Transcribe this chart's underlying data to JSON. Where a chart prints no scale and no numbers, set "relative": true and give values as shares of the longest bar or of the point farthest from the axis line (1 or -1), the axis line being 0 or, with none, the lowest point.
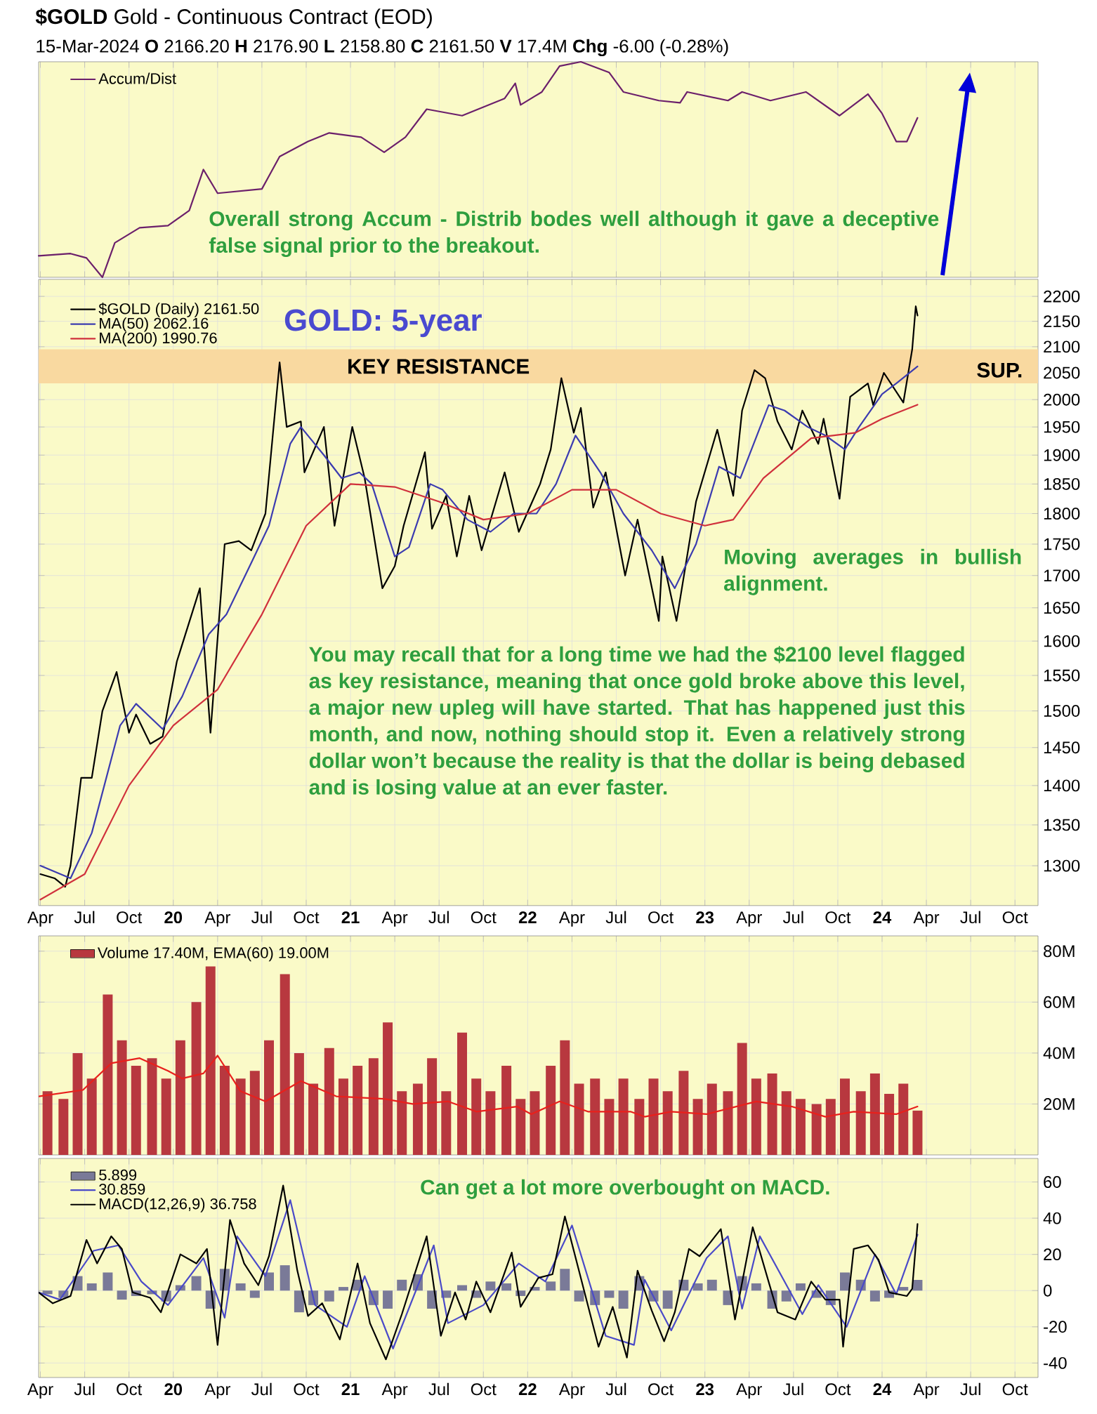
{
  "chart_data": [
    {
      "type": "line",
      "title": "**$GOLD** Gold - Continuous Contract (EOD)",
      "subtitle": "15-Mar-2024 **O** 2166.20 **H** 2176.90 **L** 2158.80 **C** 2161.50 **V** 17.4M **Chg** -6.00 (-0.28%)",
      "relative": true,
      "grid": "x",
      "legend": "top left",
      "tick_labels": false,
      "xlim": [
        2019.24,
        2024.88
      ],
      "xticks": [
        {
          "value": 2019.25,
          "label": null
        },
        {
          "value": 2019.5,
          "label": null
        },
        {
          "value": 2019.75,
          "label": null
        },
        {
          "value": 2020,
          "label": null
        },
        {
          "value": 2020.25,
          "label": null
        },
        {
          "value": 2020.5,
          "label": null
        },
        {
          "value": 2020.75,
          "label": null
        },
        {
          "value": 2021,
          "label": null
        },
        {
          "value": 2021.25,
          "label": null
        },
        {
          "value": 2021.5,
          "label": null
        },
        {
          "value": 2021.75,
          "label": null
        },
        {
          "value": 2022,
          "label": null
        },
        {
          "value": 2022.25,
          "label": null
        },
        {
          "value": 2022.5,
          "label": null
        },
        {
          "value": 2022.75,
          "label": null
        },
        {
          "value": 2023,
          "label": null
        },
        {
          "value": 2023.25,
          "label": null
        },
        {
          "value": 2023.5,
          "label": null
        },
        {
          "value": 2023.75,
          "label": null
        },
        {
          "value": 2024,
          "label": null
        },
        {
          "value": 2024.25,
          "label": null
        },
        {
          "value": 2024.5,
          "label": null
        },
        {
          "value": 2024.75,
          "label": null
        }
      ],
      "series": [
        {
          "name": "Accum/Dist",
          "color": "#6b1f6b",
          "x": [
            2019.24,
            2019.42,
            2019.51,
            2019.6,
            2019.67,
            2019.81,
            2019.97,
            2020.09,
            2020.17,
            2020.25,
            2020.5,
            2020.6,
            2020.76,
            2020.88,
            2021.06,
            2021.19,
            2021.31,
            2021.43,
            2021.63,
            2021.87,
            2021.93,
            2021.96,
            2022.08,
            2022.18,
            2022.3,
            2022.46,
            2022.54,
            2022.74,
            2022.86,
            2022.9,
            2023.13,
            2023.21,
            2023.37,
            2023.57,
            2023.76,
            2023.92,
            2024.0,
            2024.08,
            2024.14,
            2024.2
          ],
          "values": [
            0.1,
            0.11,
            0.09,
            0,
            0.16,
            0.23,
            0.24,
            0.31,
            0.5,
            0.39,
            0.41,
            0.56,
            0.63,
            0.67,
            0.65,
            0.58,
            0.65,
            0.78,
            0.75,
            0.83,
            0.9,
            0.8,
            0.86,
            0.98,
            1,
            0.95,
            0.86,
            0.82,
            0.81,
            0.86,
            0.82,
            0.86,
            0.82,
            0.86,
            0.75,
            0.85,
            0.76,
            0.63,
            0.63,
            0.74
          ]
        }
      ],
      "annotations": [
        "Overall strong Accum - Distrib bodes well although it gave a deceptive false signal prior to the breakout."
      ]
    },
    {
      "type": "line",
      "log": "y",
      "grid": true,
      "legend": "top left",
      "xlim": [
        2019.24,
        2024.88
      ],
      "xticks": [
        {
          "value": 2019.25,
          "label": "Apr"
        },
        {
          "value": 2019.5,
          "label": "Jul"
        },
        {
          "value": 2019.75,
          "label": "Oct"
        },
        {
          "value": 2020,
          "label": "20"
        },
        {
          "value": 2020.25,
          "label": "Apr"
        },
        {
          "value": 2020.5,
          "label": "Jul"
        },
        {
          "value": 2020.75,
          "label": "Oct"
        },
        {
          "value": 2021,
          "label": "21"
        },
        {
          "value": 2021.25,
          "label": "Apr"
        },
        {
          "value": 2021.5,
          "label": "Jul"
        },
        {
          "value": 2021.75,
          "label": "Oct"
        },
        {
          "value": 2022,
          "label": "22"
        },
        {
          "value": 2022.25,
          "label": "Apr"
        },
        {
          "value": 2022.5,
          "label": "Jul"
        },
        {
          "value": 2022.75,
          "label": "Oct"
        },
        {
          "value": 2023,
          "label": "23"
        },
        {
          "value": 2023.25,
          "label": "Apr"
        },
        {
          "value": 2023.5,
          "label": "Jul"
        },
        {
          "value": 2023.75,
          "label": "Oct"
        },
        {
          "value": 2024,
          "label": "24"
        },
        {
          "value": 2024.25,
          "label": "Apr"
        },
        {
          "value": 2024.5,
          "label": "Jul"
        },
        {
          "value": 2024.75,
          "label": "Oct"
        }
      ],
      "ylim": [
        1253,
        2235
      ],
      "yticks": [
        1300,
        1350,
        1400,
        1450,
        1500,
        1550,
        1600,
        1650,
        1700,
        1750,
        1800,
        1850,
        1900,
        1950,
        2000,
        2050,
        2100,
        2150,
        2200
      ],
      "series": [
        {
          "name": "$GOLD (Daily) 2161.50",
          "color": "#000000",
          "x": [
            2019.25,
            2019.33,
            2019.39,
            2019.42,
            2019.48,
            2019.54,
            2019.6,
            2019.68,
            2019.75,
            2019.79,
            2019.87,
            2019.94,
            2020.02,
            2020.15,
            2020.21,
            2020.29,
            2020.37,
            2020.44,
            2020.52,
            2020.6,
            2020.64,
            2020.72,
            2020.74,
            2020.85,
            2020.91,
            2021.01,
            2021.08,
            2021.18,
            2021.25,
            2021.3,
            2021.42,
            2021.46,
            2021.54,
            2021.6,
            2021.67,
            2021.74,
            2021.87,
            2021.95,
            2022.07,
            2022.13,
            2022.19,
            2022.26,
            2022.3,
            2022.37,
            2022.44,
            2022.55,
            2022.62,
            2022.74,
            2022.76,
            2022.84,
            2022.95,
            2023.07,
            2023.16,
            2023.21,
            2023.28,
            2023.34,
            2023.41,
            2023.49,
            2023.55,
            2023.64,
            2023.67,
            2023.76,
            2023.82,
            2023.92,
            2023.95,
            2024.01,
            2024.12,
            2024.17,
            2024.19,
            2024.2
          ],
          "values": [
            1290,
            1285,
            1275,
            1300,
            1410,
            1410,
            1500,
            1555,
            1470,
            1495,
            1455,
            1465,
            1570,
            1680,
            1470,
            1750,
            1755,
            1740,
            1800,
            2070,
            1950,
            1960,
            1870,
            1950,
            1780,
            1950,
            1860,
            1680,
            1715,
            1780,
            1905,
            1775,
            1830,
            1730,
            1830,
            1740,
            1870,
            1770,
            1850,
            1910,
            2040,
            1940,
            1985,
            1810,
            1870,
            1700,
            1790,
            1630,
            1730,
            1630,
            1820,
            1945,
            1830,
            1980,
            2055,
            2040,
            1960,
            1910,
            1980,
            1920,
            1965,
            1825,
            2005,
            2030,
            1990,
            2050,
            1995,
            2095,
            2180,
            2161.5
          ]
        },
        {
          "name": "MA(50) 2062.16",
          "color": "#3b3bb0",
          "x": [
            2019.25,
            2019.42,
            2019.54,
            2019.7,
            2019.79,
            2019.94,
            2020.05,
            2020.2,
            2020.3,
            2020.44,
            2020.54,
            2020.66,
            2020.72,
            2020.85,
            2020.95,
            2021.05,
            2021.12,
            2021.25,
            2021.33,
            2021.45,
            2021.52,
            2021.66,
            2021.79,
            2021.92,
            2022.05,
            2022.16,
            2022.27,
            2022.41,
            2022.54,
            2022.7,
            2022.83,
            2022.95,
            2023.08,
            2023.2,
            2023.36,
            2023.45,
            2023.58,
            2023.68,
            2023.79,
            2023.87,
            2024.0,
            2024.08,
            2024.2
          ],
          "values": [
            1300,
            1285,
            1340,
            1480,
            1510,
            1475,
            1520,
            1610,
            1640,
            1720,
            1780,
            1920,
            1950,
            1900,
            1860,
            1870,
            1850,
            1730,
            1745,
            1850,
            1840,
            1790,
            1770,
            1800,
            1800,
            1850,
            1935,
            1870,
            1800,
            1740,
            1680,
            1750,
            1880,
            1860,
            1990,
            1980,
            1950,
            1935,
            1910,
            1950,
            2010,
            2030,
            2062.16
          ]
        },
        {
          "name": "MA(200) 1990.76",
          "color": "#d0303c",
          "x": [
            2019.25,
            2019.5,
            2019.75,
            2020.0,
            2020.25,
            2020.5,
            2020.75,
            2021.0,
            2021.25,
            2021.5,
            2021.75,
            2022.0,
            2022.25,
            2022.5,
            2022.75,
            2023.0,
            2023.16,
            2023.33,
            2023.6,
            2023.85,
            2024.0,
            2024.2
          ],
          "values": [
            1260,
            1290,
            1400,
            1480,
            1530,
            1640,
            1780,
            1850,
            1845,
            1820,
            1790,
            1800,
            1840,
            1840,
            1800,
            1780,
            1790,
            1860,
            1930,
            1940,
            1965,
            1990.76
          ]
        }
      ],
      "bands": [
        {
          "axis": "y",
          "from": 2030,
          "to": 2095,
          "label": "KEY RESISTANCE",
          "color": "#f9d9a0"
        }
      ],
      "annotations": [
        "GOLD: 5-year",
        "SUP.",
        "Moving averages in bullish alignment.",
        "You may recall that for a long time we had the $2100 level flagged as key resistance, meaning that once gold broke above this level, a major new upleg will have started. That has happened just this month, and now, nothing should stop it. Even a relatively strong dollar won’t because the reality is that the dollar is being debased and is losing value at an ever faster."
      ]
    },
    {
      "type": "bar",
      "grid": true,
      "legend": "top left",
      "tick_labels": "y",
      "xlim": [
        2019.24,
        2024.88
      ],
      "xticks": [
        {
          "value": 2019.25,
          "label": null
        },
        {
          "value": 2019.5,
          "label": null
        },
        {
          "value": 2019.75,
          "label": null
        },
        {
          "value": 2020,
          "label": null
        },
        {
          "value": 2020.25,
          "label": null
        },
        {
          "value": 2020.5,
          "label": null
        },
        {
          "value": 2020.75,
          "label": null
        },
        {
          "value": 2021,
          "label": null
        },
        {
          "value": 2021.25,
          "label": null
        },
        {
          "value": 2021.5,
          "label": null
        },
        {
          "value": 2021.75,
          "label": null
        },
        {
          "value": 2022,
          "label": null
        },
        {
          "value": 2022.25,
          "label": null
        },
        {
          "value": 2022.5,
          "label": null
        },
        {
          "value": 2022.75,
          "label": null
        },
        {
          "value": 2023,
          "label": null
        },
        {
          "value": 2023.25,
          "label": null
        },
        {
          "value": 2023.5,
          "label": null
        },
        {
          "value": 2023.75,
          "label": null
        },
        {
          "value": 2024,
          "label": null
        },
        {
          "value": 2024.25,
          "label": null
        },
        {
          "value": 2024.5,
          "label": null
        },
        {
          "value": 2024.75,
          "label": null
        }
      ],
      "ylim": [
        0,
        86
      ],
      "yticks": [
        {
          "value": 20,
          "label": "20M"
        },
        {
          "value": 40,
          "label": "40M"
        },
        {
          "value": 60,
          "label": "60M"
        },
        {
          "value": 80,
          "label": "80M"
        }
      ],
      "series": [
        {
          "name": "Volume 17.40M, EMA(60) 19.00M",
          "color": "#b8383f",
          "x": [
            2019.29,
            2019.38,
            2019.46,
            2019.54,
            2019.63,
            2019.71,
            2019.79,
            2019.88,
            2019.96,
            2020.04,
            2020.13,
            2020.21,
            2020.29,
            2020.38,
            2020.46,
            2020.54,
            2020.63,
            2020.71,
            2020.79,
            2020.88,
            2020.96,
            2021.04,
            2021.13,
            2021.21,
            2021.29,
            2021.38,
            2021.46,
            2021.54,
            2021.63,
            2021.71,
            2021.79,
            2021.88,
            2021.96,
            2022.04,
            2022.13,
            2022.21,
            2022.29,
            2022.38,
            2022.46,
            2022.54,
            2022.63,
            2022.71,
            2022.79,
            2022.88,
            2022.96,
            2023.04,
            2023.13,
            2023.21,
            2023.29,
            2023.38,
            2023.46,
            2023.54,
            2023.63,
            2023.71,
            2023.79,
            2023.88,
            2023.96,
            2024.04,
            2024.12,
            2024.2
          ],
          "values": [
            25,
            22,
            40,
            30,
            63,
            45,
            35,
            38,
            30,
            45,
            60,
            74,
            35,
            30,
            33,
            45,
            71,
            40,
            28,
            42,
            30,
            35,
            38,
            52,
            25,
            28,
            38,
            25,
            48,
            30,
            25,
            35,
            22,
            25,
            35,
            45,
            28,
            30,
            22,
            30,
            22,
            30,
            25,
            33,
            22,
            28,
            25,
            44,
            30,
            32,
            25,
            22,
            20,
            22,
            30,
            25,
            32,
            24,
            28,
            17.4
          ]
        },
        {
          "type": "line",
          "color": "#e8201c",
          "x": [
            2019.24,
            2019.49,
            2019.65,
            2019.81,
            2019.97,
            2020.05,
            2020.17,
            2020.25,
            2020.38,
            2020.52,
            2020.72,
            2020.92,
            2021.19,
            2021.35,
            2021.55,
            2021.71,
            2021.94,
            2022.02,
            2022.18,
            2022.34,
            2022.58,
            2022.66,
            2022.81,
            2023.01,
            2023.29,
            2023.49,
            2023.68,
            2023.84,
            2024.08,
            2024.2
          ],
          "values": [
            23,
            25.5,
            36,
            38,
            33,
            30,
            32,
            39,
            25,
            21,
            29,
            23,
            22,
            20,
            21,
            17,
            19,
            16,
            21,
            17,
            17,
            15,
            17,
            16,
            21,
            19,
            15,
            17,
            16,
            19
          ]
        }
      ]
    },
    {
      "type": "line",
      "grid": true,
      "legend": "top left",
      "xlim": [
        2019.24,
        2024.88
      ],
      "xticks": [
        {
          "value": 2019.25,
          "label": "Apr"
        },
        {
          "value": 2019.5,
          "label": "Jul"
        },
        {
          "value": 2019.75,
          "label": "Oct"
        },
        {
          "value": 2020,
          "label": "20"
        },
        {
          "value": 2020.25,
          "label": "Apr"
        },
        {
          "value": 2020.5,
          "label": "Jul"
        },
        {
          "value": 2020.75,
          "label": "Oct"
        },
        {
          "value": 2021,
          "label": "21"
        },
        {
          "value": 2021.25,
          "label": "Apr"
        },
        {
          "value": 2021.5,
          "label": "Jul"
        },
        {
          "value": 2021.75,
          "label": "Oct"
        },
        {
          "value": 2022,
          "label": "22"
        },
        {
          "value": 2022.25,
          "label": "Apr"
        },
        {
          "value": 2022.5,
          "label": "Jul"
        },
        {
          "value": 2022.75,
          "label": "Oct"
        },
        {
          "value": 2023,
          "label": "23"
        },
        {
          "value": 2023.25,
          "label": "Apr"
        },
        {
          "value": 2023.5,
          "label": "Jul"
        },
        {
          "value": 2023.75,
          "label": "Oct"
        },
        {
          "value": 2024,
          "label": "24"
        },
        {
          "value": 2024.25,
          "label": "Apr"
        },
        {
          "value": 2024.5,
          "label": "Jul"
        },
        {
          "value": 2024.75,
          "label": "Oct"
        }
      ],
      "ylim": [
        -48,
        73
      ],
      "yticks": [
        -40,
        -20,
        0,
        20,
        40,
        60
      ],
      "series": [
        {
          "name": "5.899",
          "type": "bar",
          "color": "#7a7a98",
          "x": [
            2019.29,
            2019.38,
            2019.46,
            2019.54,
            2019.63,
            2019.71,
            2019.79,
            2019.88,
            2019.96,
            2020.04,
            2020.13,
            2020.21,
            2020.29,
            2020.38,
            2020.46,
            2020.54,
            2020.63,
            2020.71,
            2020.79,
            2020.88,
            2020.96,
            2021.04,
            2021.13,
            2021.21,
            2021.29,
            2021.38,
            2021.46,
            2021.54,
            2021.63,
            2021.71,
            2021.79,
            2021.88,
            2021.96,
            2022.04,
            2022.13,
            2022.21,
            2022.29,
            2022.38,
            2022.46,
            2022.54,
            2022.63,
            2022.71,
            2022.79,
            2022.88,
            2022.96,
            2023.04,
            2023.13,
            2023.21,
            2023.29,
            2023.38,
            2023.46,
            2023.54,
            2023.63,
            2023.71,
            2023.79,
            2023.88,
            2023.96,
            2024.04,
            2024.12,
            2024.2
          ],
          "values": [
            -2,
            -4,
            8,
            4,
            10,
            -5,
            -3,
            -2,
            -6,
            3,
            8,
            -10,
            12,
            4,
            -4,
            10,
            14,
            -12,
            -8,
            -6,
            2,
            6,
            -8,
            -10,
            6,
            9,
            -10,
            -4,
            3,
            -4,
            5,
            4,
            -3,
            2,
            5,
            12,
            -6,
            -8,
            -4,
            -10,
            8,
            -6,
            -10,
            6,
            4,
            6,
            -8,
            8,
            4,
            -10,
            -6,
            4,
            -4,
            -8,
            10,
            6,
            -6,
            -4,
            2,
            5.9
          ]
        },
        {
          "name": "30.859",
          "color": "#4a4ac8",
          "x": [
            2019.24,
            2019.36,
            2019.55,
            2019.69,
            2019.82,
            2019.97,
            2020.17,
            2020.29,
            2020.36,
            2020.52,
            2020.66,
            2020.8,
            2020.98,
            2021.08,
            2021.24,
            2021.47,
            2021.55,
            2021.75,
            2021.95,
            2022.1,
            2022.25,
            2022.44,
            2022.6,
            2022.66,
            2022.81,
            2023.01,
            2023.13,
            2023.21,
            2023.31,
            2023.55,
            2023.64,
            2023.8,
            2023.96,
            2024.08,
            2024.2
          ],
          "values": [
            -1,
            -5,
            22,
            25,
            5,
            -8,
            18,
            -15,
            30,
            8,
            50,
            -8,
            -20,
            8,
            -32,
            25,
            -18,
            -8,
            15,
            5,
            36,
            -25,
            -30,
            6,
            -22,
            18,
            30,
            -10,
            30,
            -13,
            3,
            -20,
            20,
            -2,
            30.9
          ]
        },
        {
          "name": "MACD(12,26,9) 36.758",
          "color": "#000000",
          "x": [
            2019.24,
            2019.32,
            2019.42,
            2019.51,
            2019.57,
            2019.65,
            2019.71,
            2019.77,
            2019.87,
            2019.93,
            2020.04,
            2020.13,
            2020.19,
            2020.25,
            2020.32,
            2020.4,
            2020.48,
            2020.54,
            2020.62,
            2020.7,
            2020.76,
            2020.84,
            2020.94,
            2021.04,
            2021.11,
            2021.2,
            2021.29,
            2021.43,
            2021.51,
            2021.59,
            2021.65,
            2021.71,
            2021.79,
            2021.91,
            2021.96,
            2022.06,
            2022.14,
            2022.21,
            2022.3,
            2022.4,
            2022.48,
            2022.56,
            2022.62,
            2022.7,
            2022.77,
            2022.83,
            2022.91,
            2022.97,
            2023.09,
            2023.17,
            2023.27,
            2023.41,
            2023.51,
            2023.6,
            2023.68,
            2023.76,
            2023.78,
            2023.84,
            2023.92,
            2023.98,
            2024.04,
            2024.14,
            2024.17,
            2024.2
          ],
          "values": [
            -1,
            -7,
            -3,
            28,
            15,
            30,
            23,
            -1,
            -4,
            -12,
            20,
            15,
            23,
            -30,
            39,
            15,
            3,
            19,
            58,
            11,
            -14,
            -7,
            -27,
            15,
            -18,
            -38,
            -13,
            30,
            -25,
            -1,
            -16,
            5,
            -12,
            21,
            -9,
            7,
            9,
            41,
            7,
            -31,
            -9,
            -37,
            11,
            -11,
            -28,
            -12,
            23,
            19,
            34,
            -16,
            35,
            -12,
            -16,
            5,
            -5,
            -5,
            -31,
            23,
            25,
            17,
            -1,
            -3,
            1,
            36.8
          ]
        }
      ],
      "annotations": [
        "Can get a lot more overbought on MACD."
      ]
    }
  ]
}
